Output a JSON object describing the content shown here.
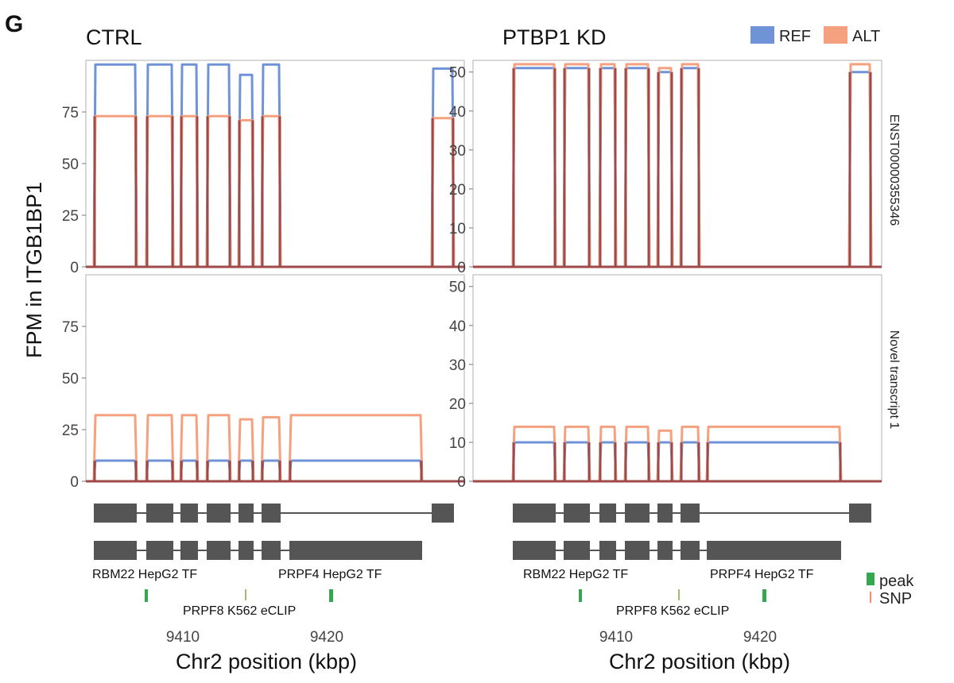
{
  "figure": {
    "panel_letter": "G",
    "y_axis_label": "FPM in ITGB1BP1",
    "x_axis_label": "Chr2 position (kbp)",
    "x_ticks": [
      "9410",
      "9420"
    ],
    "row_strips": [
      "ENST00000355346",
      "Novel transcript 1"
    ],
    "legend": [
      {
        "label": "REF",
        "color": "#6f93d6"
      },
      {
        "label": "ALT",
        "color": "#f5a07e"
      }
    ],
    "track_legend": [
      {
        "label": "peak",
        "color": "#33a84e"
      },
      {
        "label": "SNP",
        "color": "#f08a7a"
      }
    ],
    "tracks": {
      "rbm22": "RBM22 HepG2 TF",
      "prpf4": "PRPF4 HepG2 TF",
      "prpf8": "PRPF8 K562 eCLIP"
    },
    "overlap_color": "#a04a48",
    "exon_color": "#555555"
  },
  "chart_data": [
    {
      "type": "line",
      "title": "CTRL",
      "facet": "ENST00000355346",
      "ylabel": "FPM in ITGB1BP1",
      "ylim": [
        0,
        100
      ],
      "yticks": [
        0,
        25,
        50,
        75
      ],
      "xlim_kbp": [
        9402,
        9430
      ],
      "series": [
        {
          "name": "REF",
          "exon_levels": [
            98,
            98,
            98,
            98,
            93,
            98,
            96
          ]
        },
        {
          "name": "ALT",
          "exon_levels": [
            73,
            73,
            73,
            73,
            71,
            73,
            72
          ]
        }
      ]
    },
    {
      "type": "line",
      "title": "PTBP1 KD",
      "facet": "ENST00000355346",
      "ylabel": "FPM in ITGB1BP1",
      "ylim": [
        0,
        53
      ],
      "yticks": [
        0,
        10,
        20,
        30,
        40,
        50
      ],
      "xlim_kbp": [
        9402,
        9430
      ],
      "series": [
        {
          "name": "REF",
          "exon_levels": [
            51,
            51,
            51,
            51,
            50,
            51,
            50
          ]
        },
        {
          "name": "ALT",
          "exon_levels": [
            52,
            52,
            52,
            52,
            51,
            52,
            52
          ]
        }
      ]
    },
    {
      "type": "line",
      "title": "CTRL",
      "facet": "Novel transcript 1",
      "ylabel": "FPM in ITGB1BP1",
      "ylim": [
        0,
        100
      ],
      "yticks": [
        0,
        25,
        50,
        75
      ],
      "xlim_kbp": [
        9402,
        9430
      ],
      "series": [
        {
          "name": "REF",
          "exon_levels": [
            10,
            10,
            10,
            10,
            10,
            10,
            10
          ]
        },
        {
          "name": "ALT",
          "exon_levels": [
            32,
            32,
            32,
            32,
            30,
            31,
            32
          ]
        }
      ]
    },
    {
      "type": "line",
      "title": "PTBP1 KD",
      "facet": "Novel transcript 1",
      "ylabel": "FPM in ITGB1BP1",
      "ylim": [
        0,
        53
      ],
      "yticks": [
        0,
        10,
        20,
        30,
        40,
        50
      ],
      "xlim_kbp": [
        9402,
        9430
      ],
      "series": [
        {
          "name": "REF",
          "exon_levels": [
            10,
            10,
            10,
            10,
            10,
            10,
            10
          ]
        },
        {
          "name": "ALT",
          "exon_levels": [
            14,
            14,
            14,
            14,
            13,
            14,
            14
          ]
        }
      ]
    }
  ]
}
